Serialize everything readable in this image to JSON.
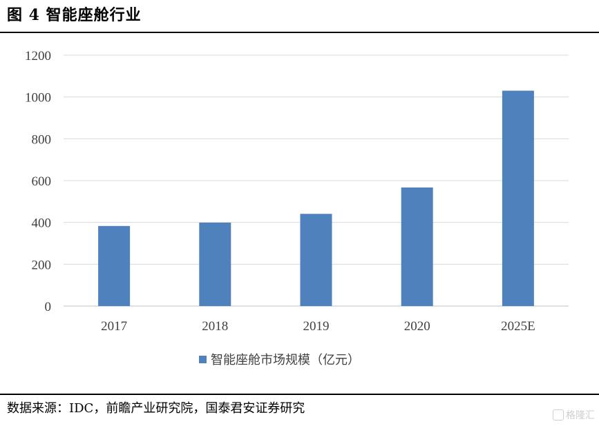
{
  "header": {
    "title": "图  4 智能座舱行业"
  },
  "footer": {
    "source": "数据来源：IDC，前瞻产业研究院，国泰君安证券研究"
  },
  "watermark": {
    "text": "格隆汇"
  },
  "chart_data": {
    "type": "bar",
    "categories": [
      "2017",
      "2018",
      "2019",
      "2020",
      "2025E"
    ],
    "series": [
      {
        "name": "智能座舱市场规模（亿元）",
        "values": [
          383,
          399,
          441,
          567,
          1030
        ],
        "color": "#4f81bd"
      }
    ],
    "ylim": [
      0,
      1200
    ],
    "yticks": [
      0,
      200,
      400,
      600,
      800,
      1000,
      1200
    ],
    "grid": true,
    "legend": "bottom"
  }
}
